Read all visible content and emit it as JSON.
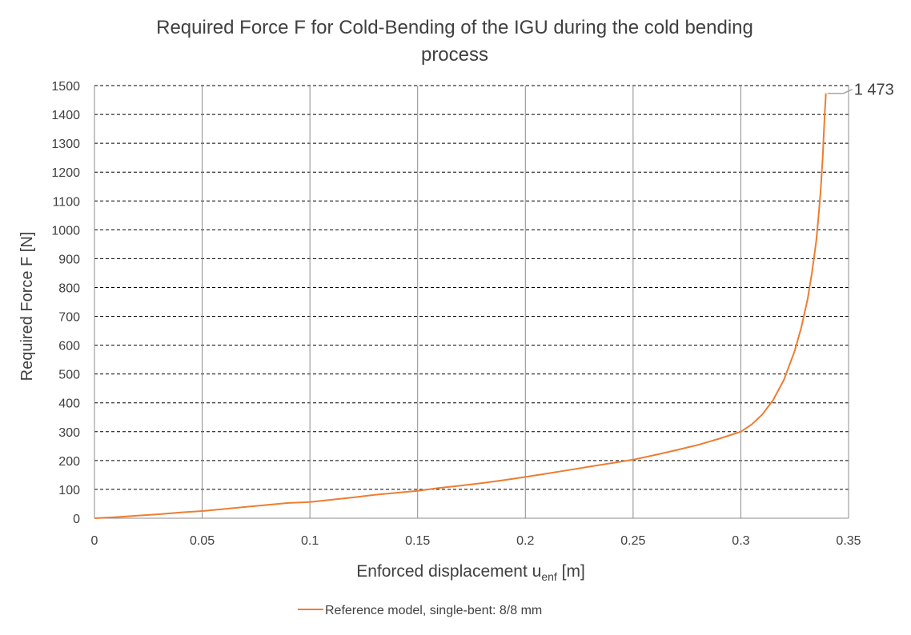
{
  "chart_data": {
    "type": "line",
    "title": "Required Force F for Cold-Bending of the IGU during the cold bending process",
    "title_lines": [
      "Required Force F for Cold-Bending of the IGU during the cold bending",
      "process"
    ],
    "xlabel_main": "Enforced displacement u",
    "xlabel_sub": "enf",
    "xlabel_unit": " [m]",
    "ylabel": "Required Force F [N]",
    "xlim": [
      0,
      0.35
    ],
    "ylim": [
      0,
      1500
    ],
    "x_ticks": [
      "0",
      "0.05",
      "0.1",
      "0.15",
      "0.2",
      "0.25",
      "0.3",
      "0.35"
    ],
    "y_ticks": [
      "0",
      "100",
      "200",
      "300",
      "400",
      "500",
      "600",
      "700",
      "800",
      "900",
      "1000",
      "1100",
      "1200",
      "1300",
      "1400",
      "1500"
    ],
    "grid": true,
    "legend_position": "bottom",
    "series": [
      {
        "name": "Reference model, single-bent: 8/8 mm",
        "color": "#ED7D31",
        "x": [
          0,
          0.01,
          0.02,
          0.03,
          0.04,
          0.05,
          0.06,
          0.07,
          0.08,
          0.09,
          0.1,
          0.11,
          0.12,
          0.13,
          0.14,
          0.15,
          0.16,
          0.17,
          0.18,
          0.19,
          0.2,
          0.21,
          0.22,
          0.23,
          0.24,
          0.25,
          0.26,
          0.27,
          0.28,
          0.29,
          0.3,
          0.305,
          0.31,
          0.315,
          0.32,
          0.325,
          0.328,
          0.331,
          0.333,
          0.335,
          0.336,
          0.337,
          0.338,
          0.3385,
          0.339,
          0.3395
        ],
        "y": [
          0,
          4,
          9,
          14,
          20,
          25,
          32,
          39,
          46,
          53,
          56,
          64,
          72,
          81,
          88,
          95,
          105,
          113,
          122,
          132,
          143,
          155,
          167,
          179,
          191,
          203,
          219,
          236,
          254,
          276,
          300,
          325,
          360,
          410,
          480,
          580,
          660,
          760,
          850,
          960,
          1040,
          1130,
          1250,
          1330,
          1410,
          1473
        ]
      }
    ],
    "annotation": {
      "label": "1 473",
      "x": 0.3395,
      "y": 1473
    }
  }
}
